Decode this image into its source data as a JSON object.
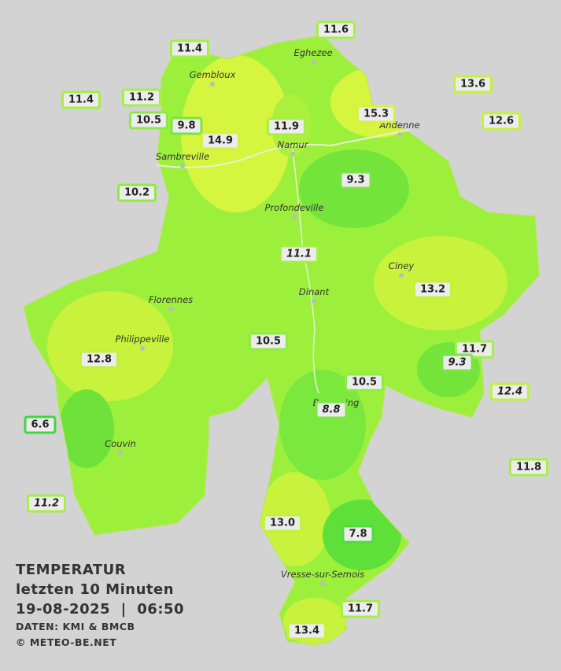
{
  "cities": [
    "Eghezee",
    "Gembloux",
    "Andenne",
    "Namur",
    "Sambreville",
    "Profondeville",
    "Ciney",
    "Dinant",
    "Florennes",
    "Philippeville",
    "Beauraing",
    "Couvin",
    "Vresse-sur-Semois"
  ],
  "stations": [
    {
      "value": 11.6
    },
    {
      "value": 11.4
    },
    {
      "value": 13.6
    },
    {
      "value": 11.4
    },
    {
      "value": 11.2
    },
    {
      "value": 15.3
    },
    {
      "value": 12.6
    },
    {
      "value": 10.5
    },
    {
      "value": 9.8
    },
    {
      "value": 11.9
    },
    {
      "value": 14.9
    },
    {
      "value": 10.2
    },
    {
      "value": 9.3
    },
    {
      "value": 11.1,
      "italic": true
    },
    {
      "value": 13.2
    },
    {
      "value": 10.5
    },
    {
      "value": 11.7
    },
    {
      "value": 9.3,
      "italic": true
    },
    {
      "value": 12.8
    },
    {
      "value": 10.5
    },
    {
      "value": 12.4,
      "italic": true
    },
    {
      "value": 8.8,
      "italic": true
    },
    {
      "value": 6.6
    },
    {
      "value": 11.8
    },
    {
      "value": 11.2,
      "italic": true
    },
    {
      "value": 13,
      "value_label": "13.0"
    },
    {
      "value": 7.8
    },
    {
      "value": 11.7
    },
    {
      "value": 13.4
    }
  ],
  "legend": {
    "title": "TEMPERATUR",
    "period": "letzten 10 Minuten",
    "datetime": "19-08-2025  |  06:50",
    "source": "DATEN: KMI & BMCB",
    "copyright": "© METEO-BE.NET"
  }
}
